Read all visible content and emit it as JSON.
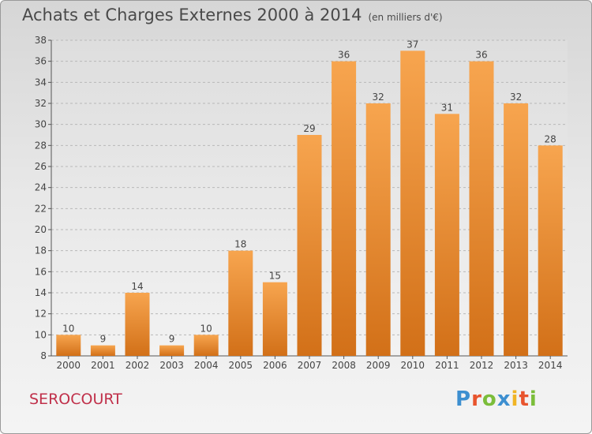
{
  "header": {
    "title": "Achats et Charges Externes 2000 à 2014",
    "unit": "(en milliers d'€)"
  },
  "footer": {
    "commune": "SEROCOURT",
    "logo": "Proxiti"
  },
  "colors": {
    "bar_top": "#f7a54f",
    "bar_bottom": "#d27018",
    "axis_text": "#444444",
    "grid": "#b8b8b8"
  },
  "chart_data": {
    "type": "bar",
    "title": "Achats et Charges Externes 2000 à 2014",
    "subtitle": "(en milliers d'€)",
    "xlabel": "",
    "ylabel": "",
    "categories": [
      "2000",
      "2001",
      "2002",
      "2003",
      "2004",
      "2005",
      "2006",
      "2007",
      "2008",
      "2009",
      "2010",
      "2011",
      "2012",
      "2013",
      "2014"
    ],
    "values": [
      10,
      9,
      14,
      9,
      10,
      18,
      15,
      29,
      36,
      32,
      37,
      31,
      36,
      32,
      28
    ],
    "ylim": [
      8,
      38
    ],
    "yticks": [
      8,
      10,
      12,
      14,
      16,
      18,
      20,
      22,
      24,
      26,
      28,
      30,
      32,
      34,
      36,
      38
    ],
    "grid": true,
    "legend": "none",
    "data_labels": true
  }
}
